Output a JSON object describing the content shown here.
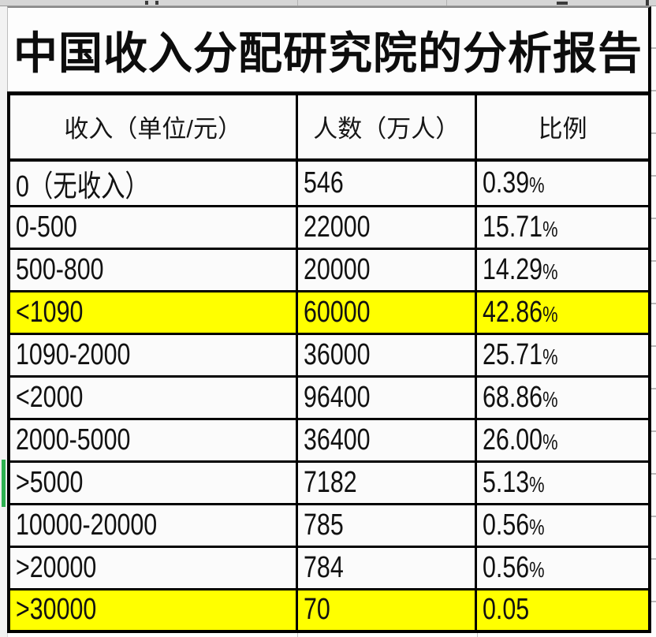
{
  "title": "中国收入分配研究院的分析报告",
  "table": {
    "headers": [
      {
        "label": "收入（单位/元）"
      },
      {
        "label": "人数（万人）"
      },
      {
        "label": "比例"
      }
    ],
    "rows": [
      {
        "income": "0（无收入）",
        "people": "546",
        "ratio": "0.39%",
        "highlight": false,
        "selected": false
      },
      {
        "income": "0-500",
        "people": "22000",
        "ratio": "15.71%",
        "highlight": false,
        "selected": false
      },
      {
        "income": "500-800",
        "people": "20000",
        "ratio": "14.29%",
        "highlight": false,
        "selected": false
      },
      {
        "income": "<1090",
        "people": "60000",
        "ratio": "42.86%",
        "highlight": true,
        "selected": false
      },
      {
        "income": "1090-2000",
        "people": "36000",
        "ratio": "25.71%",
        "highlight": false,
        "selected": false
      },
      {
        "income": "<2000",
        "people": "96400",
        "ratio": "68.86%",
        "highlight": false,
        "selected": false
      },
      {
        "income": "2000-5000",
        "people": "36400",
        "ratio": "26.00%",
        "highlight": false,
        "selected": false
      },
      {
        "income": ">5000",
        "people": "7182",
        "ratio": "5.13%",
        "highlight": false,
        "selected": true
      },
      {
        "income": "10000-20000",
        "people": "785",
        "ratio": "0.56%",
        "highlight": false,
        "selected": false
      },
      {
        "income": ">20000",
        "people": "784",
        "ratio": "0.56%",
        "highlight": false,
        "selected": false
      },
      {
        "income": ">30000",
        "people": "70",
        "ratio": "0.05",
        "highlight": true,
        "selected": false
      }
    ]
  },
  "colors": {
    "highlight": "#ffff00",
    "selection": "#2eb150",
    "border": "#000000"
  },
  "chart_data": {
    "type": "table",
    "title": "中国收入分配研究院的分析报告",
    "columns": [
      "收入（单位/元）",
      "人数（万人）",
      "比例"
    ],
    "rows": [
      [
        "0（无收入）",
        "546",
        "0.39%"
      ],
      [
        "0-500",
        "22000",
        "15.71%"
      ],
      [
        "500-800",
        "20000",
        "14.29%"
      ],
      [
        "<1090",
        "60000",
        "42.86%"
      ],
      [
        "1090-2000",
        "36000",
        "25.71%"
      ],
      [
        "<2000",
        "96400",
        "68.86%"
      ],
      [
        "2000-5000",
        "36400",
        "26.00%"
      ],
      [
        ">5000",
        "7182",
        "5.13%"
      ],
      [
        "10000-20000",
        "785",
        "0.56%"
      ],
      [
        ">20000",
        "784",
        "0.56%"
      ],
      [
        ">30000",
        "70",
        "0.05"
      ]
    ],
    "highlighted_rows": [
      "<1090",
      ">30000"
    ]
  }
}
